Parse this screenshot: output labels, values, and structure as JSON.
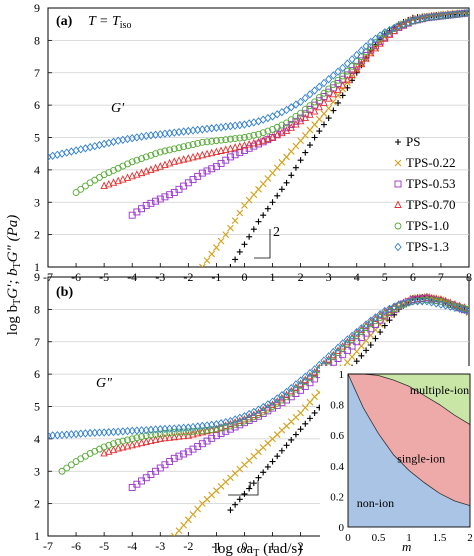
{
  "chart_data": [
    {
      "panel": "(a)",
      "annotation": "T = T",
      "annotation_sub": "iso",
      "curve_label": "G'",
      "type": "scatter",
      "xlim": [
        -7,
        8
      ],
      "ylim": [
        1,
        9
      ],
      "xticks": [
        "-7",
        "-6",
        "-5",
        "-4",
        "-3",
        "-2",
        "-1",
        "0",
        "1",
        "2",
        "3",
        "4",
        "5",
        "6",
        "7",
        "8"
      ],
      "yticks": [
        "1",
        "2",
        "3",
        "4",
        "5",
        "6",
        "7",
        "8",
        "9"
      ],
      "slope_label": "2",
      "legend_position": "right",
      "series": [
        {
          "name": "PS",
          "marker": "plus",
          "color": "#000000",
          "x": [
            -0.5,
            0,
            0.5,
            1,
            1.5,
            2,
            2.5,
            3,
            3.5,
            4,
            4.5,
            5,
            5.5,
            6,
            6.5,
            7,
            7.5,
            8
          ],
          "y": [
            1,
            1.7,
            2.4,
            3.0,
            3.6,
            4.3,
            5.0,
            5.6,
            6.3,
            7.0,
            7.7,
            8.2,
            8.5,
            8.7,
            8.75,
            8.8,
            8.8,
            8.85
          ]
        },
        {
          "name": "TPS-0.22",
          "marker": "x",
          "color": "#d4a017",
          "x": [
            -1.5,
            -1,
            -0.5,
            0,
            0.5,
            1,
            1.5,
            2,
            2.5,
            3,
            3.5,
            4,
            4.5,
            5,
            5.5,
            6,
            6.5,
            7,
            7.5,
            8
          ],
          "y": [
            1,
            1.6,
            2.2,
            2.9,
            3.4,
            3.9,
            4.4,
            4.9,
            5.4,
            5.9,
            6.5,
            7.1,
            7.6,
            8.1,
            8.45,
            8.65,
            8.75,
            8.8,
            8.85,
            8.85
          ]
        },
        {
          "name": "TPS-0.53",
          "marker": "square",
          "color": "#9933cc",
          "x": [
            -4,
            -3.5,
            -3,
            -2.5,
            -2,
            -1.5,
            -1,
            -0.5,
            0,
            0.5,
            1,
            1.5,
            2,
            2.5,
            3,
            3.5,
            4,
            4.5,
            5,
            5.5,
            6,
            6.5,
            7,
            7.5,
            8
          ],
          "y": [
            2.6,
            2.9,
            3.1,
            3.3,
            3.6,
            3.9,
            4.1,
            4.4,
            4.6,
            4.8,
            5.0,
            5.3,
            5.6,
            6.0,
            6.4,
            6.8,
            7.2,
            7.7,
            8.1,
            8.4,
            8.6,
            8.7,
            8.75,
            8.8,
            8.85
          ]
        },
        {
          "name": "TPS-0.70",
          "marker": "triangle",
          "color": "#e03030",
          "x": [
            -5,
            -4.5,
            -4,
            -3.5,
            -3,
            -2.5,
            -2,
            -1.5,
            -1,
            -0.5,
            0,
            0.5,
            1,
            1.5,
            2,
            2.5,
            3,
            3.5,
            4,
            4.5,
            5,
            5.5,
            6,
            6.5,
            7,
            7.5,
            8
          ],
          "y": [
            3.5,
            3.65,
            3.8,
            3.95,
            4.1,
            4.25,
            4.35,
            4.45,
            4.55,
            4.65,
            4.75,
            4.85,
            5.0,
            5.2,
            5.5,
            5.8,
            6.2,
            6.6,
            7.1,
            7.6,
            8.05,
            8.4,
            8.6,
            8.7,
            8.75,
            8.8,
            8.85
          ]
        },
        {
          "name": "TPS-1.0",
          "marker": "circle",
          "color": "#55aa33",
          "x": [
            -6,
            -5.5,
            -5,
            -4.5,
            -4,
            -3.5,
            -3,
            -2.5,
            -2,
            -1.5,
            -1,
            -0.5,
            0,
            0.5,
            1,
            1.5,
            2,
            2.5,
            3,
            3.5,
            4,
            4.5,
            5,
            5.5,
            6,
            6.5,
            7,
            7.5,
            8
          ],
          "y": [
            3.3,
            3.6,
            3.85,
            4.05,
            4.25,
            4.4,
            4.55,
            4.65,
            4.75,
            4.85,
            4.9,
            4.95,
            5.0,
            5.1,
            5.25,
            5.45,
            5.75,
            6.1,
            6.5,
            6.9,
            7.35,
            7.8,
            8.2,
            8.45,
            8.6,
            8.7,
            8.75,
            8.8,
            8.85
          ]
        },
        {
          "name": "TPS-1.3",
          "marker": "diamond",
          "color": "#2f7fd0",
          "x": [
            -7,
            -6.5,
            -6,
            -5.5,
            -5,
            -4.5,
            -4,
            -3.5,
            -3,
            -2.5,
            -2,
            -1.5,
            -1,
            -0.5,
            0,
            0.5,
            1,
            1.5,
            2,
            2.5,
            3,
            3.5,
            4,
            4.5,
            5,
            5.5,
            6,
            6.5,
            7,
            7.5,
            8
          ],
          "y": [
            4.4,
            4.5,
            4.6,
            4.7,
            4.8,
            4.9,
            4.98,
            5.05,
            5.1,
            5.15,
            5.2,
            5.25,
            5.3,
            5.35,
            5.4,
            5.5,
            5.65,
            5.85,
            6.1,
            6.45,
            6.8,
            7.15,
            7.55,
            7.95,
            8.25,
            8.45,
            8.6,
            8.7,
            8.75,
            8.8,
            8.85
          ]
        }
      ]
    },
    {
      "panel": "(b)",
      "curve_label": "G\"",
      "type": "scatter",
      "xlim": [
        -7,
        8
      ],
      "ylim": [
        1,
        9
      ],
      "xticks": [
        "-7",
        "-6",
        "-5",
        "-4",
        "-3",
        "-2",
        "-1",
        "0",
        "1",
        "2",
        "3",
        "4",
        "5",
        "6",
        "7",
        "8"
      ],
      "yticks": [
        "1",
        "2",
        "3",
        "4",
        "5",
        "6",
        "7",
        "8",
        "9"
      ],
      "slope_label": "1",
      "series": [
        {
          "name": "PS",
          "marker": "plus",
          "color": "#000000",
          "x": [
            -0.5,
            0,
            0.5,
            1,
            1.5,
            2,
            2.5,
            3,
            3.5,
            4,
            4.5,
            5,
            5.5,
            6,
            6.5,
            7,
            7.5,
            8
          ],
          "y": [
            1.8,
            2.3,
            2.8,
            3.3,
            3.8,
            4.3,
            4.8,
            5.3,
            5.8,
            6.4,
            6.9,
            7.5,
            8.0,
            8.35,
            8.4,
            8.3,
            8.1,
            7.9
          ]
        },
        {
          "name": "TPS-0.22",
          "marker": "x",
          "color": "#d4a017",
          "x": [
            -2.5,
            -2,
            -1.5,
            -1,
            -0.5,
            0,
            0.5,
            1,
            1.5,
            2,
            2.5,
            3,
            3.5,
            4,
            4.5,
            5,
            5.5,
            6,
            6.5,
            7,
            7.5,
            8
          ],
          "y": [
            1.0,
            1.5,
            2.0,
            2.4,
            2.8,
            3.2,
            3.6,
            4.0,
            4.4,
            4.8,
            5.3,
            5.7,
            6.2,
            6.7,
            7.2,
            7.7,
            8.1,
            8.35,
            8.4,
            8.3,
            8.1,
            7.9
          ]
        },
        {
          "name": "TPS-0.53",
          "marker": "square",
          "color": "#9933cc",
          "x": [
            -4,
            -3.5,
            -3,
            -2.5,
            -2,
            -1.5,
            -1,
            -0.5,
            0,
            0.5,
            1,
            1.5,
            2,
            2.5,
            3,
            3.5,
            4,
            4.5,
            5,
            5.5,
            6,
            6.5,
            7,
            7.5,
            8
          ],
          "y": [
            2.5,
            2.8,
            3.1,
            3.4,
            3.6,
            3.85,
            4.1,
            4.3,
            4.5,
            4.7,
            4.95,
            5.2,
            5.5,
            5.85,
            6.25,
            6.6,
            7.0,
            7.4,
            7.8,
            8.1,
            8.3,
            8.35,
            8.25,
            8.1,
            7.95
          ]
        },
        {
          "name": "TPS-0.70",
          "marker": "triangle",
          "color": "#e03030",
          "x": [
            -5,
            -4.5,
            -4,
            -3.5,
            -3,
            -2.5,
            -2,
            -1.5,
            -1,
            -0.5,
            0,
            0.5,
            1,
            1.5,
            2,
            2.5,
            3,
            3.5,
            4,
            4.5,
            5,
            5.5,
            6,
            6.5,
            7,
            7.5,
            8
          ],
          "y": [
            3.55,
            3.7,
            3.8,
            3.9,
            4.0,
            4.05,
            4.1,
            4.2,
            4.3,
            4.45,
            4.6,
            4.8,
            5.05,
            5.35,
            5.7,
            6.05,
            6.45,
            6.85,
            7.25,
            7.6,
            7.9,
            8.15,
            8.3,
            8.35,
            8.3,
            8.15,
            8.0
          ]
        },
        {
          "name": "TPS-1.0",
          "marker": "circle",
          "color": "#55aa33",
          "x": [
            -6.5,
            -6,
            -5.5,
            -5,
            -4.5,
            -4,
            -3.5,
            -3,
            -2.5,
            -2,
            -1.5,
            -1,
            -0.5,
            0,
            0.5,
            1,
            1.5,
            2,
            2.5,
            3,
            3.5,
            4,
            4.5,
            5,
            5.5,
            6,
            6.5,
            7,
            7.5,
            8
          ],
          "y": [
            3.0,
            3.3,
            3.55,
            3.75,
            3.9,
            4.0,
            4.1,
            4.15,
            4.2,
            4.22,
            4.25,
            4.3,
            4.4,
            4.55,
            4.75,
            5.0,
            5.3,
            5.65,
            6.0,
            6.4,
            6.8,
            7.2,
            7.55,
            7.85,
            8.1,
            8.25,
            8.3,
            8.25,
            8.1,
            8.0
          ]
        },
        {
          "name": "TPS-1.3",
          "marker": "diamond",
          "color": "#2f7fd0",
          "x": [
            -7,
            -6.5,
            -6,
            -5.5,
            -5,
            -4.5,
            -4,
            -3.5,
            -3,
            -2.5,
            -2,
            -1.5,
            -1,
            -0.5,
            0,
            0.5,
            1,
            1.5,
            2,
            2.5,
            3,
            3.5,
            4,
            4.5,
            5,
            5.5,
            6,
            6.5,
            7,
            7.5,
            8
          ],
          "y": [
            4.1,
            4.12,
            4.15,
            4.18,
            4.2,
            4.22,
            4.25,
            4.27,
            4.3,
            4.32,
            4.35,
            4.4,
            4.45,
            4.55,
            4.7,
            4.9,
            5.15,
            5.45,
            5.8,
            6.15,
            6.55,
            6.95,
            7.3,
            7.65,
            7.95,
            8.15,
            8.25,
            8.25,
            8.15,
            8.05,
            7.95
          ]
        }
      ]
    },
    {
      "panel": "inset",
      "type": "area",
      "xlabel": "m",
      "xlim": [
        0,
        2
      ],
      "ylim": [
        0,
        1
      ],
      "xticks": [
        "0",
        "0.5",
        "1",
        "1.5",
        "2"
      ],
      "yticks": [
        "0",
        "0.2",
        "0.4",
        "0.6",
        "0.8",
        "1"
      ],
      "regions": [
        {
          "name": "non-ion",
          "color": "#a9c4e4"
        },
        {
          "name": "single-ion",
          "color": "#eeaaa8"
        },
        {
          "name": "multiple-ion",
          "color": "#c9e6a6"
        }
      ],
      "boundary_lower": {
        "x": [
          0,
          0.25,
          0.5,
          0.75,
          1,
          1.25,
          1.5,
          1.75,
          2
        ],
        "y": [
          1,
          0.78,
          0.61,
          0.47,
          0.37,
          0.29,
          0.22,
          0.17,
          0.14
        ]
      },
      "boundary_upper": {
        "x": [
          0,
          0.25,
          0.5,
          0.75,
          1,
          1.25,
          1.5,
          1.75,
          2
        ],
        "y": [
          1,
          1,
          0.99,
          0.96,
          0.92,
          0.86,
          0.8,
          0.73,
          0.67
        ]
      }
    }
  ],
  "labels": {
    "ylabel_main": "log b",
    "ylabel_sub1": "T",
    "ylabel_mid": "G'; b",
    "ylabel_sub2": "T",
    "ylabel_end": "G\" (Pa)",
    "xlabel_main": "log ωa",
    "xlabel_sub": "T",
    "xlabel_end": " (rad/s)"
  }
}
